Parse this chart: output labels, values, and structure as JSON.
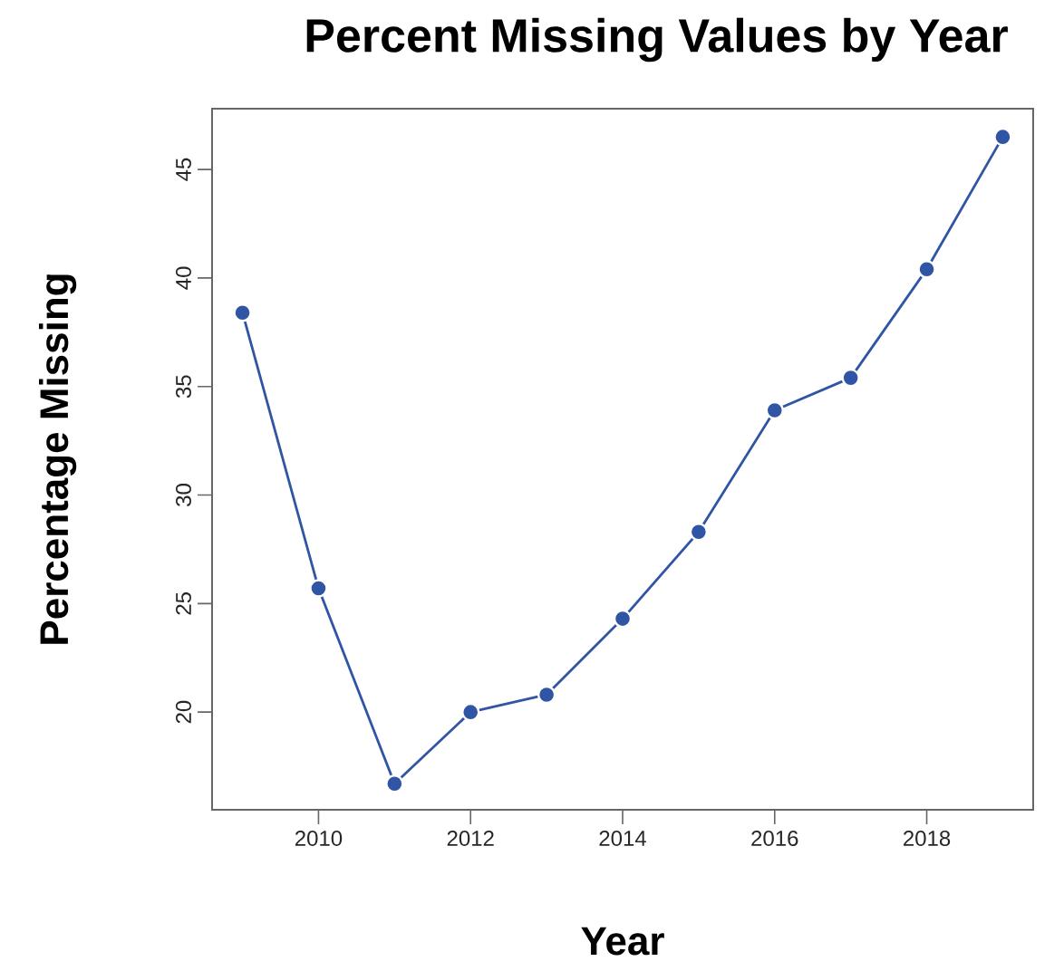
{
  "chart_data": {
    "type": "line",
    "title": "Percent Missing Values by Year",
    "xlabel": "Year",
    "ylabel": "Percentage Missing",
    "x": [
      2009,
      2010,
      2011,
      2012,
      2013,
      2014,
      2015,
      2016,
      2017,
      2018,
      2019
    ],
    "series": [
      {
        "color": "#2f55a4",
        "values": [
          38.4,
          25.7,
          16.7,
          20.0,
          20.8,
          24.3,
          28.3,
          33.9,
          35.4,
          40.4,
          46.5
        ]
      }
    ],
    "xlim": [
      2008.6,
      2019.4
    ],
    "ylim": [
      15.5,
      47.8
    ],
    "xticks": [
      2010,
      2012,
      2014,
      2016,
      2018
    ],
    "yticks": [
      20,
      25,
      30,
      35,
      40,
      45
    ],
    "marker": "circle",
    "line_style": "solid",
    "grid": false
  }
}
